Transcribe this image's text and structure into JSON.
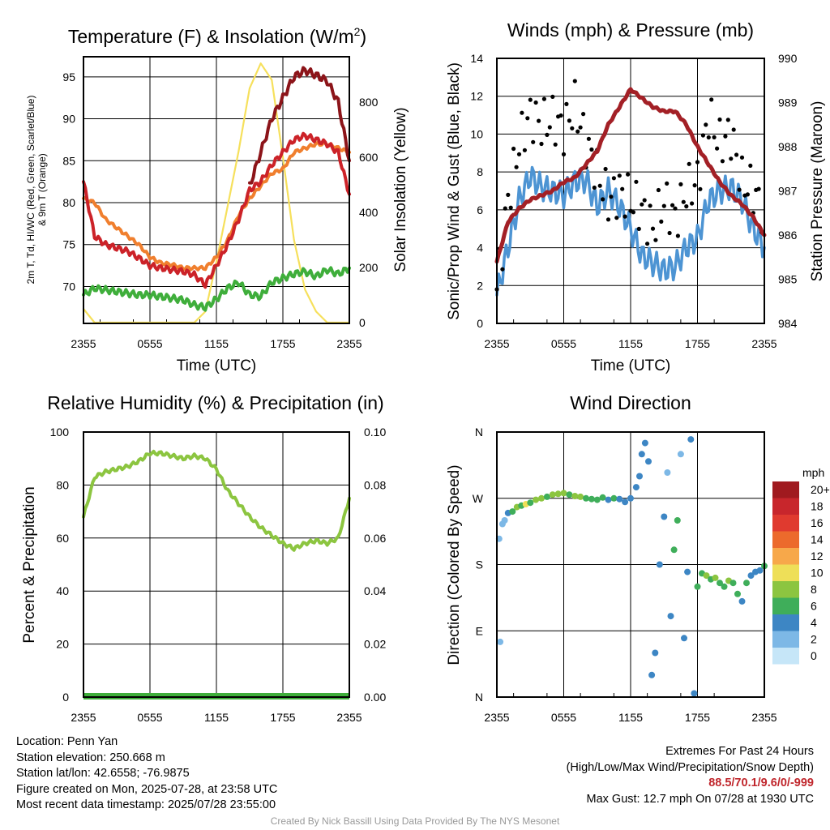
{
  "colors": {
    "temp": "#cc2228",
    "dewpoint": "#3fae3b",
    "heat_index": "#8c1419",
    "temp_9m": "#f07f2e",
    "insolation": "#f6e05c",
    "wind": "#4d94d3",
    "gust": "#000000",
    "pressure": "#a32026",
    "rh": "#8cc540",
    "precip": "#3fae3b",
    "grid": "#000000"
  },
  "time_ticks": [
    "2355",
    "0555",
    "1155",
    "1755",
    "2355"
  ],
  "chart_data": [
    {
      "id": "temperature",
      "type": "line",
      "title": "Temperature (F) & Insolation (W/m²)",
      "title_main": "Temperature (F) & Insolation (W/m",
      "title_sup": "2",
      "title_end": ")",
      "xlabel": "Time (UTC)",
      "ylabel_line1": "2m T, Td, HI/WC (Red, Green, Scarlet/Blue)",
      "ylabel_line2": "& 9m T (Orange)",
      "y2label": "Solar Insolation (Yellow)",
      "ylim": [
        65.6,
        97.4
      ],
      "y2lim": [
        -3,
        964
      ],
      "yticks": [
        70,
        75,
        80,
        85,
        90,
        95
      ],
      "y2ticks": [
        0,
        200,
        400,
        600,
        800
      ],
      "x_hours": [
        0,
        1,
        2,
        3,
        4,
        5,
        6,
        7,
        8,
        9,
        10,
        11,
        12,
        13,
        14,
        15,
        16,
        17,
        18,
        19,
        20,
        21,
        22,
        23,
        24
      ],
      "series": [
        {
          "name": "2m T",
          "axis": "left",
          "values": [
            82.5,
            76.0,
            75.0,
            74.6,
            74.2,
            73.4,
            72.5,
            72.2,
            72.0,
            71.8,
            71.4,
            70.2,
            72.5,
            75.0,
            78.0,
            81.5,
            82.5,
            84.5,
            86.0,
            87.5,
            88.0,
            87.5,
            87.0,
            86.0,
            81.0
          ]
        },
        {
          "name": "2m Td",
          "axis": "left",
          "values": [
            69.0,
            69.8,
            69.6,
            69.4,
            69.2,
            69.0,
            69.0,
            68.8,
            68.6,
            68.4,
            67.8,
            67.5,
            68.5,
            69.8,
            70.5,
            69.0,
            68.8,
            70.5,
            71.0,
            71.5,
            71.8,
            71.2,
            72.0,
            71.5,
            72.2
          ]
        },
        {
          "name": "HI/WC",
          "axis": "left",
          "values": [
            null,
            null,
            null,
            null,
            null,
            null,
            null,
            null,
            null,
            null,
            null,
            null,
            null,
            null,
            null,
            82.0,
            86.0,
            90.0,
            92.5,
            95.0,
            95.8,
            95.2,
            94.5,
            92.0,
            85.0
          ]
        },
        {
          "name": "9m T",
          "axis": "left",
          "values": [
            80.5,
            80.0,
            78.0,
            77.0,
            76.0,
            75.0,
            73.5,
            72.8,
            72.6,
            72.2,
            72.2,
            72.2,
            73.5,
            75.5,
            78.5,
            80.5,
            82.0,
            83.5,
            84.0,
            86.0,
            86.5,
            87.0,
            87.0,
            86.5,
            86.0
          ]
        },
        {
          "name": "Insolation",
          "axis": "right",
          "values": [
            50,
            0,
            0,
            0,
            0,
            0,
            0,
            0,
            0,
            0,
            0,
            40,
            220,
            420,
            620,
            850,
            940,
            880,
            600,
            300,
            120,
            40,
            0,
            0,
            0
          ]
        }
      ]
    },
    {
      "id": "winds",
      "type": "line",
      "title": "Winds (mph) & Pressure (mb)",
      "xlabel": "Time (UTC)",
      "ylabel": "Sonic/Prop Wind & Gust (Blue, Black)",
      "y2label": "Station Pressure (Maroon)",
      "ylim": [
        0,
        14
      ],
      "y2lim": [
        984,
        990
      ],
      "yticks": [
        0,
        2,
        4,
        6,
        8,
        10,
        12,
        14
      ],
      "y2ticks": [
        984,
        985,
        986,
        987,
        988,
        989,
        990
      ],
      "x_hours": [
        0,
        1,
        2,
        3,
        4,
        5,
        6,
        7,
        8,
        9,
        10,
        11,
        12,
        13,
        14,
        15,
        16,
        17,
        18,
        19,
        20,
        21,
        22,
        23,
        24
      ],
      "series": [
        {
          "name": "Sonic/Prop Wind",
          "axis": "left",
          "values": [
            1.5,
            4.0,
            6.5,
            7.8,
            7.2,
            7.0,
            6.8,
            7.5,
            7.6,
            6.2,
            7.0,
            6.2,
            5.0,
            3.6,
            3.2,
            2.8,
            3.0,
            4.0,
            4.5,
            6.5,
            7.0,
            7.2,
            6.5,
            5.0,
            4.0
          ]
        },
        {
          "name": "Gust",
          "axis": "left",
          "values": [
            1.8,
            6.5,
            9.5,
            11.0,
            10.5,
            10.8,
            10.2,
            11.5,
            9.5,
            8.0,
            6.5,
            7.0,
            6.5,
            6.0,
            5.0,
            6.5,
            5.5,
            7.0,
            7.5,
            11.0,
            9.5,
            10.0,
            7.5,
            7.0,
            5.8
          ]
        },
        {
          "name": "Station Pressure",
          "axis": "right",
          "values": [
            985.4,
            986.3,
            986.6,
            986.8,
            986.9,
            987.0,
            987.2,
            987.3,
            987.6,
            987.9,
            988.5,
            988.9,
            989.3,
            989.1,
            988.9,
            988.8,
            988.8,
            988.5,
            988.0,
            987.6,
            987.2,
            986.9,
            986.7,
            986.4,
            986.0
          ]
        }
      ]
    },
    {
      "id": "humidity",
      "type": "line",
      "title": "Relative Humidity (%) & Precipitation (in)",
      "ylabel": "Percent & Precipitation",
      "ylim": [
        0,
        100
      ],
      "y2lim": [
        0,
        0.1
      ],
      "yticks": [
        0,
        20,
        40,
        60,
        80,
        100
      ],
      "y2ticks": [
        "0.00",
        "0.02",
        "0.04",
        "0.06",
        "0.08",
        "0.10"
      ],
      "x_hours": [
        0,
        1,
        2,
        3,
        4,
        5,
        6,
        7,
        8,
        9,
        10,
        11,
        12,
        13,
        14,
        15,
        16,
        17,
        18,
        19,
        20,
        21,
        22,
        23,
        24
      ],
      "series": [
        {
          "name": "Relative Humidity",
          "axis": "left",
          "values": [
            68,
            83,
            85,
            86,
            87,
            89,
            92,
            92,
            91,
            90,
            91,
            90,
            86,
            78,
            73,
            68,
            64,
            61,
            58,
            56,
            58,
            59,
            58,
            60,
            75
          ]
        },
        {
          "name": "Precipitation",
          "axis": "right",
          "values": [
            0,
            0,
            0,
            0,
            0,
            0,
            0,
            0,
            0,
            0,
            0,
            0,
            0,
            0,
            0,
            0,
            0,
            0,
            0,
            0,
            0,
            0,
            0,
            0,
            0
          ]
        }
      ]
    },
    {
      "id": "direction",
      "type": "scatter",
      "title": "Wind Direction",
      "ylabel": "Direction (Colored By Speed)",
      "ylim": [
        0,
        360
      ],
      "yticks": [
        "N",
        "E",
        "S",
        "W",
        "N"
      ],
      "legend_title": "mph",
      "legend_labels": [
        "20+",
        "18",
        "16",
        "14",
        "12",
        "10",
        "8",
        "6",
        "4",
        "2",
        "0"
      ],
      "legend_colors": [
        "#a01a1f",
        "#c8262c",
        "#e03a2f",
        "#ec6a2c",
        "#f7a84a",
        "#eedf58",
        "#8cc540",
        "#3fae5a",
        "#3d86c4",
        "#7db8e6",
        "#c6e6f8"
      ],
      "points": [
        {
          "t": 0.2,
          "dir": 215,
          "mph": 1
        },
        {
          "t": 0.3,
          "dir": 75,
          "mph": 1
        },
        {
          "t": 0.5,
          "dir": 235,
          "mph": 2
        },
        {
          "t": 0.7,
          "dir": 240,
          "mph": 2
        },
        {
          "t": 1.0,
          "dir": 250,
          "mph": 4
        },
        {
          "t": 1.4,
          "dir": 252,
          "mph": 6
        },
        {
          "t": 1.8,
          "dir": 258,
          "mph": 7
        },
        {
          "t": 2.2,
          "dir": 260,
          "mph": 6
        },
        {
          "t": 2.6,
          "dir": 262,
          "mph": 9
        },
        {
          "t": 3.0,
          "dir": 264,
          "mph": 6
        },
        {
          "t": 3.5,
          "dir": 268,
          "mph": 7
        },
        {
          "t": 4.0,
          "dir": 270,
          "mph": 8
        },
        {
          "t": 4.5,
          "dir": 272,
          "mph": 6
        },
        {
          "t": 5.0,
          "dir": 275,
          "mph": 7
        },
        {
          "t": 5.5,
          "dir": 276,
          "mph": 8
        },
        {
          "t": 6.0,
          "dir": 277,
          "mph": 7
        },
        {
          "t": 6.5,
          "dir": 275,
          "mph": 6
        },
        {
          "t": 7.0,
          "dir": 273,
          "mph": 8
        },
        {
          "t": 7.5,
          "dir": 272,
          "mph": 7
        },
        {
          "t": 8.0,
          "dir": 270,
          "mph": 6
        },
        {
          "t": 8.5,
          "dir": 269,
          "mph": 5
        },
        {
          "t": 9.0,
          "dir": 268,
          "mph": 5
        },
        {
          "t": 9.5,
          "dir": 271,
          "mph": 6
        },
        {
          "t": 10.0,
          "dir": 268,
          "mph": 4
        },
        {
          "t": 10.5,
          "dir": 270,
          "mph": 5
        },
        {
          "t": 11.0,
          "dir": 269,
          "mph": 4
        },
        {
          "t": 11.5,
          "dir": 265,
          "mph": 3
        },
        {
          "t": 12.0,
          "dir": 270,
          "mph": 4
        },
        {
          "t": 12.5,
          "dir": 285,
          "mph": 4
        },
        {
          "t": 12.8,
          "dir": 300,
          "mph": 3
        },
        {
          "t": 13.0,
          "dir": 330,
          "mph": 4
        },
        {
          "t": 13.3,
          "dir": 345,
          "mph": 3
        },
        {
          "t": 13.6,
          "dir": 320,
          "mph": 4
        },
        {
          "t": 13.9,
          "dir": 30,
          "mph": 4
        },
        {
          "t": 14.2,
          "dir": 60,
          "mph": 3
        },
        {
          "t": 14.6,
          "dir": 180,
          "mph": 3
        },
        {
          "t": 15.0,
          "dir": 245,
          "mph": 3
        },
        {
          "t": 15.3,
          "dir": 305,
          "mph": 2
        },
        {
          "t": 15.6,
          "dir": 110,
          "mph": 3
        },
        {
          "t": 15.9,
          "dir": 200,
          "mph": 5
        },
        {
          "t": 16.2,
          "dir": 240,
          "mph": 6
        },
        {
          "t": 16.5,
          "dir": 330,
          "mph": 2
        },
        {
          "t": 16.8,
          "dir": 80,
          "mph": 3
        },
        {
          "t": 17.1,
          "dir": 170,
          "mph": 4
        },
        {
          "t": 17.4,
          "dir": 350,
          "mph": 3
        },
        {
          "t": 17.7,
          "dir": 5,
          "mph": 4
        },
        {
          "t": 18.0,
          "dir": 150,
          "mph": 5
        },
        {
          "t": 18.4,
          "dir": 168,
          "mph": 6
        },
        {
          "t": 18.8,
          "dir": 165,
          "mph": 7
        },
        {
          "t": 19.2,
          "dir": 160,
          "mph": 6
        },
        {
          "t": 19.6,
          "dir": 162,
          "mph": 7
        },
        {
          "t": 20.0,
          "dir": 155,
          "mph": 6
        },
        {
          "t": 20.4,
          "dir": 150,
          "mph": 5
        },
        {
          "t": 20.8,
          "dir": 158,
          "mph": 7
        },
        {
          "t": 21.2,
          "dir": 155,
          "mph": 6
        },
        {
          "t": 21.6,
          "dir": 140,
          "mph": 6
        },
        {
          "t": 22.0,
          "dir": 130,
          "mph": 4
        },
        {
          "t": 22.4,
          "dir": 155,
          "mph": 5
        },
        {
          "t": 22.8,
          "dir": 165,
          "mph": 4
        },
        {
          "t": 23.2,
          "dir": 170,
          "mph": 3
        },
        {
          "t": 23.6,
          "dir": 172,
          "mph": 3
        },
        {
          "t": 24.0,
          "dir": 178,
          "mph": 6
        }
      ]
    }
  ],
  "footer": {
    "location": "Location: Penn Yan",
    "elevation": "Station elevation: 250.668 m",
    "latlon": "Station lat/lon: 42.6558; -76.9875",
    "created": "Figure created on Mon, 2025-07-28, at 23:58 UTC",
    "recent": "Most recent data timestamp: 2025/07/28 23:55:00",
    "extremes_title": "Extremes For Past 24 Hours",
    "extremes_subtitle": "(High/Low/Max Wind/Precipitation/Snow Depth)",
    "extremes_values": "88.5/70.1/9.6/0/-999",
    "max_gust": "Max Gust: 12.7 mph On 07/28 at 1930 UTC",
    "credit": "Created By Nick Bassill Using Data Provided By The NYS Mesonet"
  }
}
